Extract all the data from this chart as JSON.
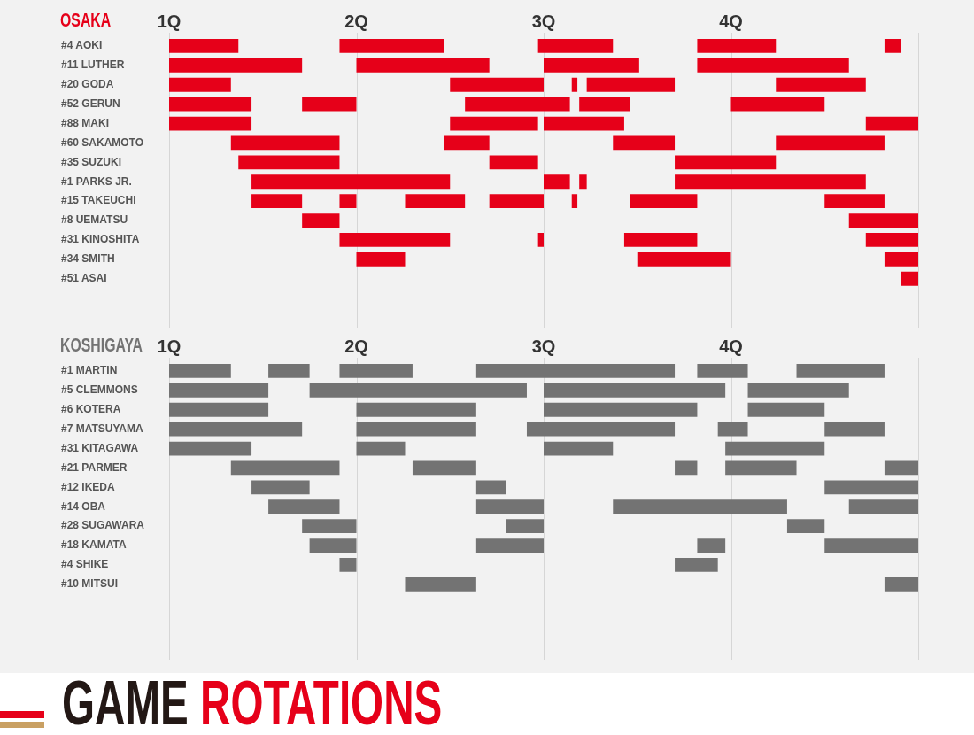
{
  "chart_data": [
    {
      "type": "bar",
      "title": "OSAKA",
      "orientation": "horizontal",
      "categories": [
        "#4 AOKI",
        "#11 LUTHER",
        "#20 GODA",
        "#52 GERUN",
        "#88 MAKI",
        "#60 SAKAMOTO",
        "#35 SUZUKI",
        "#1 PARKS JR.",
        "#15 TAKEUCHI",
        "#8 UEMATSU",
        "#31 KINOSHITA",
        "#34 SMITH",
        "#51 ASAI"
      ],
      "series": [
        {
          "color": "#e60019",
          "base": [
            1,
            1,
            1,
            1,
            1,
            1.33,
            1.37,
            1.44,
            1.44,
            1.71,
            1.91,
            2,
            4.91
          ],
          "values": [
            0.37,
            0.71,
            0.33,
            0.44,
            0.44,
            0.58,
            0.54,
            1.06,
            0.27,
            0.2,
            0.59,
            0.26,
            0.09
          ]
        },
        {
          "color": "#e60019",
          "base": [
            1.91,
            2,
            2.5,
            1.71,
            2.5,
            2.47,
            2.71,
            3,
            1.91,
            4.63,
            2.97,
            3.5,
            null
          ],
          "values": [
            0.56,
            0.71,
            0.5,
            0.29,
            0.47,
            0.24,
            0.26,
            0.14,
            0.09,
            0.37,
            0.03,
            0.5,
            null
          ]
        },
        {
          "color": "#e60019",
          "base": [
            2.97,
            3,
            3.15,
            2.58,
            3,
            3.37,
            3.7,
            3.19,
            2.26,
            null,
            3.43,
            4.82,
            null
          ],
          "values": [
            0.4,
            0.51,
            0.03,
            0.56,
            0.43,
            0.33,
            0.54,
            0.04,
            0.32,
            null,
            0.39,
            0.18,
            null
          ]
        },
        {
          "color": "#e60019",
          "base": [
            3.82,
            3.82,
            3.23,
            3.19,
            4.72,
            4.24,
            null,
            3.7,
            2.71,
            null,
            4.72,
            null,
            null
          ],
          "values": [
            0.42,
            0.81,
            0.47,
            0.27,
            0.28,
            0.58,
            null,
            1.02,
            0.29,
            null,
            0.28,
            null,
            null
          ]
        },
        {
          "color": "#e60019",
          "base": [
            4.82,
            null,
            4.24,
            4,
            null,
            null,
            null,
            null,
            3.15,
            null,
            null,
            null,
            null
          ],
          "values": [
            0.09,
            null,
            0.48,
            0.5,
            null,
            null,
            null,
            null,
            0.03,
            null,
            null,
            null,
            null
          ]
        },
        {
          "color": "#e60019",
          "base": [
            null,
            null,
            null,
            null,
            null,
            null,
            null,
            null,
            3.46,
            null,
            null,
            null,
            null
          ],
          "values": [
            null,
            null,
            null,
            null,
            null,
            null,
            null,
            null,
            0.36,
            null,
            null,
            null,
            null
          ]
        },
        {
          "color": "#e60019",
          "base": [
            null,
            null,
            null,
            null,
            null,
            null,
            null,
            null,
            4.5,
            null,
            null,
            null,
            null
          ],
          "values": [
            null,
            null,
            null,
            null,
            null,
            null,
            null,
            null,
            0.32,
            null,
            null,
            null,
            null
          ]
        }
      ],
      "xlim": [
        1,
        5
      ],
      "xticks": [
        {
          "value": 1,
          "label": "1Q"
        },
        {
          "value": 2,
          "label": "2Q"
        },
        {
          "value": 3,
          "label": "3Q"
        },
        {
          "value": 4,
          "label": "4Q"
        },
        {
          "value": 5,
          "label": null
        }
      ],
      "grid": "x"
    },
    {
      "type": "bar",
      "title": "KOSHIGAYA",
      "orientation": "horizontal",
      "categories": [
        "#1 MARTIN",
        "#5 CLEMMONS",
        "#6 KOTERA",
        "#7 MATSUYAMA",
        "#31 KITAGAWA",
        "#21 PARMER",
        "#12 IKEDA",
        "#14 OBA",
        "#28 SUGAWARA",
        "#18 KAMATA",
        "#4 SHIKE",
        "#10 MITSUI"
      ],
      "series": [
        {
          "color": "#737373",
          "base": [
            1,
            1,
            1,
            1,
            1,
            1.33,
            1.44,
            1.53,
            1.71,
            1.75,
            1.91,
            2.26
          ],
          "values": [
            0.33,
            0.53,
            0.53,
            0.71,
            0.44,
            0.58,
            0.31,
            0.38,
            0.29,
            0.25,
            0.09,
            0.38
          ]
        },
        {
          "color": "#737373",
          "base": [
            1.53,
            1.75,
            2,
            2,
            2,
            2.3,
            2.64,
            2.64,
            2.8,
            2.64,
            3.7,
            4.82
          ],
          "values": [
            0.22,
            1.16,
            0.64,
            0.64,
            0.26,
            0.34,
            0.16,
            0.36,
            0.2,
            0.36,
            0.23,
            0.18
          ]
        },
        {
          "color": "#737373",
          "base": [
            1.91,
            3,
            3,
            2.91,
            3,
            3.7,
            4.5,
            3.37,
            4.3,
            3.82,
            null,
            null
          ],
          "values": [
            0.39,
            0.97,
            0.82,
            0.79,
            0.37,
            0.12,
            0.5,
            0.93,
            0.2,
            0.15,
            null,
            null
          ]
        },
        {
          "color": "#737373",
          "base": [
            2.64,
            4.09,
            4.09,
            3.93,
            3.97,
            3.97,
            null,
            4.63,
            null,
            4.5,
            null,
            null
          ],
          "values": [
            1.06,
            0.54,
            0.41,
            0.16,
            0.53,
            0.38,
            null,
            0.37,
            null,
            0.5,
            null,
            null
          ]
        },
        {
          "color": "#737373",
          "base": [
            3.82,
            null,
            null,
            4.5,
            null,
            4.82,
            null,
            null,
            null,
            null,
            null,
            null
          ],
          "values": [
            0.27,
            null,
            null,
            0.32,
            null,
            0.18,
            null,
            null,
            null,
            null,
            null,
            null
          ]
        },
        {
          "color": "#737373",
          "base": [
            4.35,
            null,
            null,
            null,
            null,
            null,
            null,
            null,
            null,
            null,
            null,
            null
          ],
          "values": [
            0.47,
            null,
            null,
            null,
            null,
            null,
            null,
            null,
            null,
            null,
            null,
            null
          ]
        }
      ],
      "xlim": [
        1,
        5
      ],
      "xticks": [
        {
          "value": 1,
          "label": "1Q"
        },
        {
          "value": 2,
          "label": "2Q"
        },
        {
          "value": 3,
          "label": "3Q"
        },
        {
          "value": 4,
          "label": "4Q"
        },
        {
          "value": 5,
          "label": null
        }
      ],
      "grid": "x"
    },
    {
      "type": "other",
      "title": "GAME ROTATIONS"
    }
  ]
}
